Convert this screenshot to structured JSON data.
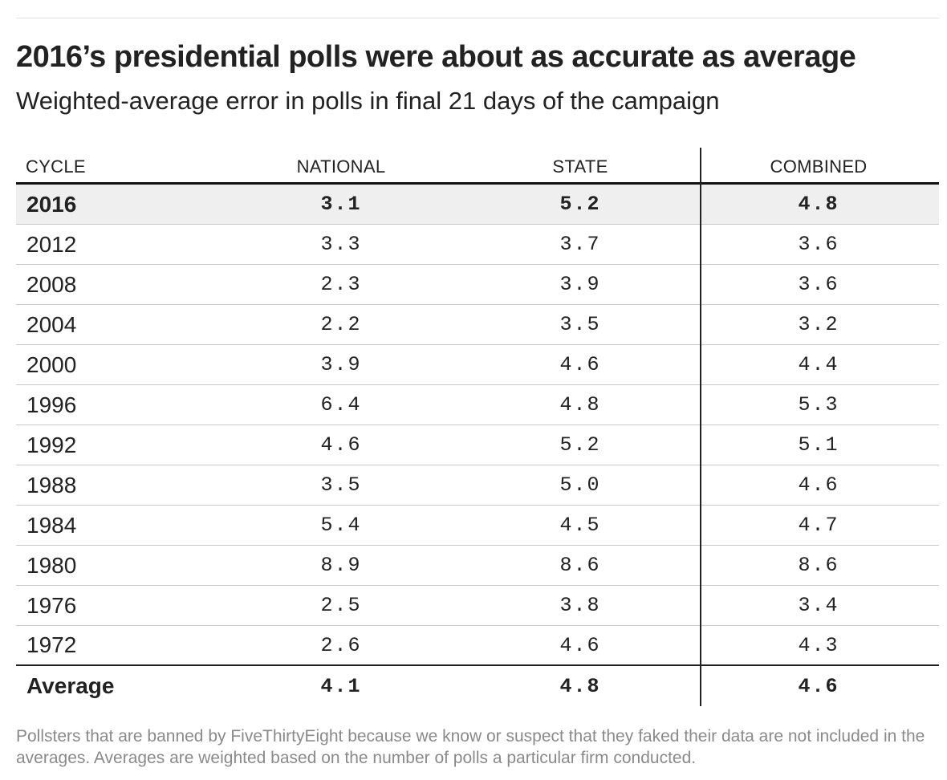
{
  "title": "2016’s presidential polls were about as accurate as average",
  "subtitle": "Weighted-average error in polls in final 21 days of the campaign",
  "footnote": "Pollsters that are banned by FiveThirtyEight because we know or suspect that they faked their data are not included in the averages. Averages are weighted based on the number of polls a particular firm conducted.",
  "colors": {
    "text": "#222222",
    "highlight_row": "#efefef",
    "footnote": "#8a8a8a",
    "rule": "#c9c9c9"
  },
  "chart_data": {
    "type": "table",
    "title": "2016’s presidential polls were about as accurate as average",
    "subtitle": "Weighted-average error in polls in final 21 days of the campaign",
    "columns": [
      "CYCLE",
      "NATIONAL",
      "STATE",
      "COMBINED"
    ],
    "rows": [
      {
        "cycle": "2016",
        "national": "3.1",
        "state": "5.2",
        "combined": "4.8",
        "highlighted": true
      },
      {
        "cycle": "2012",
        "national": "3.3",
        "state": "3.7",
        "combined": "3.6"
      },
      {
        "cycle": "2008",
        "national": "2.3",
        "state": "3.9",
        "combined": "3.6"
      },
      {
        "cycle": "2004",
        "national": "2.2",
        "state": "3.5",
        "combined": "3.2"
      },
      {
        "cycle": "2000",
        "national": "3.9",
        "state": "4.6",
        "combined": "4.4"
      },
      {
        "cycle": "1996",
        "national": "6.4",
        "state": "4.8",
        "combined": "5.3"
      },
      {
        "cycle": "1992",
        "national": "4.6",
        "state": "5.2",
        "combined": "5.1"
      },
      {
        "cycle": "1988",
        "national": "3.5",
        "state": "5.0",
        "combined": "4.6"
      },
      {
        "cycle": "1984",
        "national": "5.4",
        "state": "4.5",
        "combined": "4.7"
      },
      {
        "cycle": "1980",
        "national": "8.9",
        "state": "8.6",
        "combined": "8.6"
      },
      {
        "cycle": "1976",
        "national": "2.5",
        "state": "3.8",
        "combined": "3.4"
      },
      {
        "cycle": "1972",
        "national": "2.6",
        "state": "4.6",
        "combined": "4.3"
      }
    ],
    "average": {
      "cycle": "Average",
      "national": "4.1",
      "state": "4.8",
      "combined": "4.6"
    }
  }
}
